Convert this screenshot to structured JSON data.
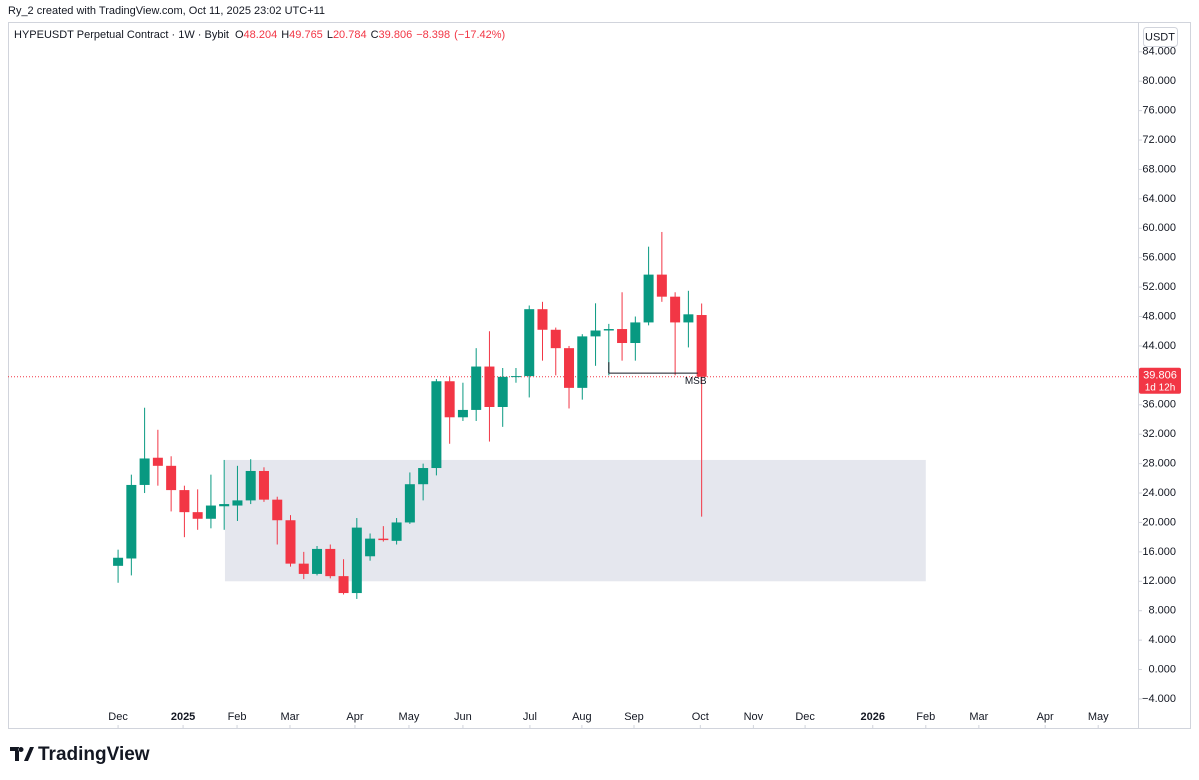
{
  "credit": "Ry_2 created with TradingView.com, Oct 11, 2025 23:02 UTC+11",
  "brand": "TradingView",
  "chart_data": {
    "type": "candlestick",
    "title": "HYPEUSDT Perpetual Contract · 1W · Bybit",
    "ohlc_labels": [
      "O",
      "H",
      "L",
      "C"
    ],
    "change": "−8.398",
    "change_pct": "(−17.42%)",
    "currency": "USDT",
    "countdown": "1d 12h",
    "up_color": "#089981",
    "down_color": "#f23645",
    "open": [
      14.1,
      15.1,
      25.1,
      28.8,
      27.7,
      24.4,
      21.4,
      20.5,
      22.2,
      22.3,
      23.0,
      27.0,
      23.1,
      20.3,
      14.4,
      13.0,
      16.4,
      12.7,
      10.4,
      15.4,
      17.8,
      17.5,
      20.0,
      25.2,
      27.4,
      39.2,
      34.3,
      35.3,
      41.2,
      35.7,
      39.8,
      39.9,
      49.0,
      46.2,
      43.7,
      38.3,
      45.3,
      46.1,
      46.3,
      44.4,
      47.2,
      53.7,
      50.7,
      47.2,
      48.204
    ],
    "high": [
      16.3,
      26.5,
      35.6,
      32.6,
      29.0,
      25.0,
      24.5,
      26.5,
      28.5,
      27.7,
      28.6,
      27.5,
      23.5,
      21.0,
      16.0,
      16.8,
      17.0,
      15.0,
      20.6,
      18.5,
      19.5,
      20.6,
      26.8,
      28.0,
      39.5,
      39.8,
      39.0,
      43.7,
      46.0,
      41.0,
      41.0,
      49.5,
      50.0,
      46.5,
      44.0,
      45.6,
      49.8,
      47.0,
      51.3,
      48.0,
      57.5,
      59.5,
      51.3,
      51.5,
      49.765
    ],
    "low": [
      11.8,
      12.8,
      24.0,
      25.0,
      21.5,
      18.0,
      19.0,
      19.2,
      19.0,
      20.2,
      22.5,
      22.8,
      17.0,
      14.0,
      12.3,
      12.8,
      12.4,
      10.2,
      9.6,
      14.8,
      17.4,
      17.0,
      19.8,
      23.0,
      26.4,
      30.7,
      33.8,
      33.8,
      31.0,
      33.0,
      39.0,
      37.0,
      42.0,
      40.0,
      35.5,
      36.7,
      41.3,
      40.0,
      42.0,
      42.0,
      46.8,
      50.0,
      40.0,
      43.8,
      20.784
    ],
    "close": [
      15.2,
      25.1,
      28.7,
      27.7,
      24.4,
      21.4,
      20.5,
      22.3,
      22.5,
      23.0,
      27.0,
      23.1,
      20.3,
      14.4,
      13.0,
      16.4,
      12.7,
      10.4,
      19.3,
      17.8,
      17.6,
      20.0,
      25.2,
      27.4,
      39.2,
      34.3,
      35.3,
      41.2,
      35.7,
      39.8,
      39.9,
      49.0,
      46.2,
      43.7,
      38.3,
      45.3,
      46.1,
      46.3,
      44.4,
      47.2,
      53.7,
      50.7,
      47.2,
      48.3,
      39.806
    ],
    "xlim": [
      -8.3,
      76.9
    ],
    "xticks": [
      {
        "value": 0,
        "label": "Dec"
      },
      {
        "value": 4.9,
        "label": "2025"
      },
      {
        "value": 8.97,
        "label": "Feb"
      },
      {
        "value": 12.96,
        "label": "Mar"
      },
      {
        "value": 17.86,
        "label": "Apr"
      },
      {
        "value": 21.93,
        "label": "May"
      },
      {
        "value": 26.0,
        "label": "Jun"
      },
      {
        "value": 31.05,
        "label": "Jul"
      },
      {
        "value": 34.97,
        "label": "Aug"
      },
      {
        "value": 38.9,
        "label": "Sep"
      },
      {
        "value": 43.9,
        "label": "Oct"
      },
      {
        "value": 47.9,
        "label": "Nov"
      },
      {
        "value": 51.8,
        "label": "Dec"
      },
      {
        "value": 56.9,
        "label": "2026"
      },
      {
        "value": 60.9,
        "label": "Feb"
      },
      {
        "value": 64.9,
        "label": "Mar"
      },
      {
        "value": 69.9,
        "label": "Apr"
      },
      {
        "value": 73.9,
        "label": "May"
      }
    ],
    "ylim": [
      -7.95,
      88.05
    ],
    "yticks": [
      {
        "value": 84,
        "label": "84.000"
      },
      {
        "value": 80,
        "label": "80.000"
      },
      {
        "value": 76,
        "label": "76.000"
      },
      {
        "value": 72,
        "label": "72.000"
      },
      {
        "value": 68,
        "label": "68.000"
      },
      {
        "value": 64,
        "label": "64.000"
      },
      {
        "value": 60,
        "label": "60.000"
      },
      {
        "value": 56,
        "label": "56.000"
      },
      {
        "value": 52,
        "label": "52.000"
      },
      {
        "value": 48,
        "label": "48.000"
      },
      {
        "value": 44,
        "label": "44.000"
      },
      {
        "value": 40,
        "label": "40.000"
      },
      {
        "value": 36,
        "label": "36.000"
      },
      {
        "value": 32,
        "label": "32.000"
      },
      {
        "value": 28,
        "label": "28.000"
      },
      {
        "value": 24,
        "label": "24.000"
      },
      {
        "value": 20,
        "label": "20.000"
      },
      {
        "value": 16,
        "label": "16.000"
      },
      {
        "value": 12,
        "label": "12.000"
      },
      {
        "value": 8,
        "label": "8.000"
      },
      {
        "value": 4,
        "label": "4.000"
      },
      {
        "value": 0,
        "label": "0.000"
      },
      {
        "value": -4,
        "label": "−4.000"
      }
    ],
    "grid": false,
    "zone": {
      "x": [
        8.06,
        60.9
      ],
      "y": [
        12.0,
        28.5
      ],
      "color": "#e0e3eb"
    },
    "annotations": [
      {
        "text": "MSB",
        "x": [
          37.0,
          43.7
        ],
        "y": 40.3
      }
    ]
  }
}
